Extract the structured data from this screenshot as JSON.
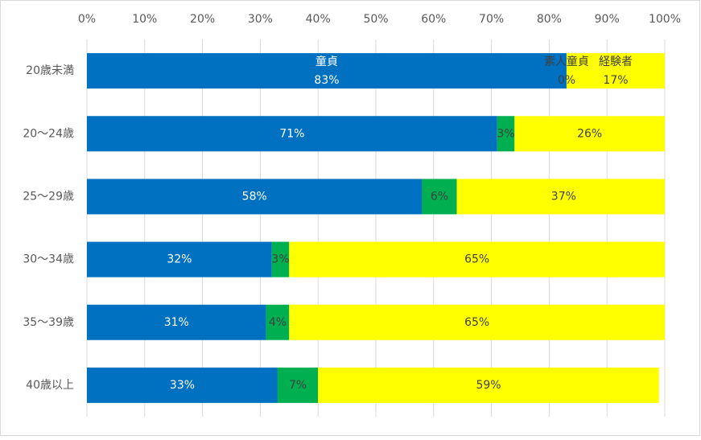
{
  "chart_data": {
    "type": "bar",
    "orientation": "horizontal",
    "stacked": true,
    "categories": [
      "20歳未満",
      "20～24歳",
      "25～29歳",
      "30～34歳",
      "35～39歳",
      "40歳以上"
    ],
    "series": [
      {
        "name": "童貞",
        "color": "#0070c0",
        "values": [
          83,
          71,
          58,
          32,
          31,
          33
        ],
        "value_labels": [
          "83%",
          "71%",
          "58%",
          "32%",
          "31%",
          "33%"
        ]
      },
      {
        "name": "素人童貞",
        "color": "#00b050",
        "values": [
          0,
          3,
          6,
          3,
          4,
          7
        ],
        "value_labels": [
          "0%",
          "3%",
          "6%",
          "3%",
          "4%",
          "7%"
        ]
      },
      {
        "name": "経験者",
        "color": "#ffff00",
        "values": [
          17,
          26,
          37,
          65,
          65,
          59
        ],
        "value_labels": [
          "17%",
          "26%",
          "37%",
          "65%",
          "65%",
          "59%"
        ]
      }
    ],
    "xlim": [
      0,
      100
    ],
    "xticks": [
      {
        "value": 0,
        "label": "0%"
      },
      {
        "value": 10,
        "label": "10%"
      },
      {
        "value": 20,
        "label": "20%"
      },
      {
        "value": 30,
        "label": "30%"
      },
      {
        "value": 40,
        "label": "40%"
      },
      {
        "value": 50,
        "label": "50%"
      },
      {
        "value": 60,
        "label": "60%"
      },
      {
        "value": 70,
        "label": "70%"
      },
      {
        "value": 80,
        "label": "80%"
      },
      {
        "value": 90,
        "label": "90%"
      },
      {
        "value": 100,
        "label": "100%"
      }
    ],
    "grid": true
  }
}
